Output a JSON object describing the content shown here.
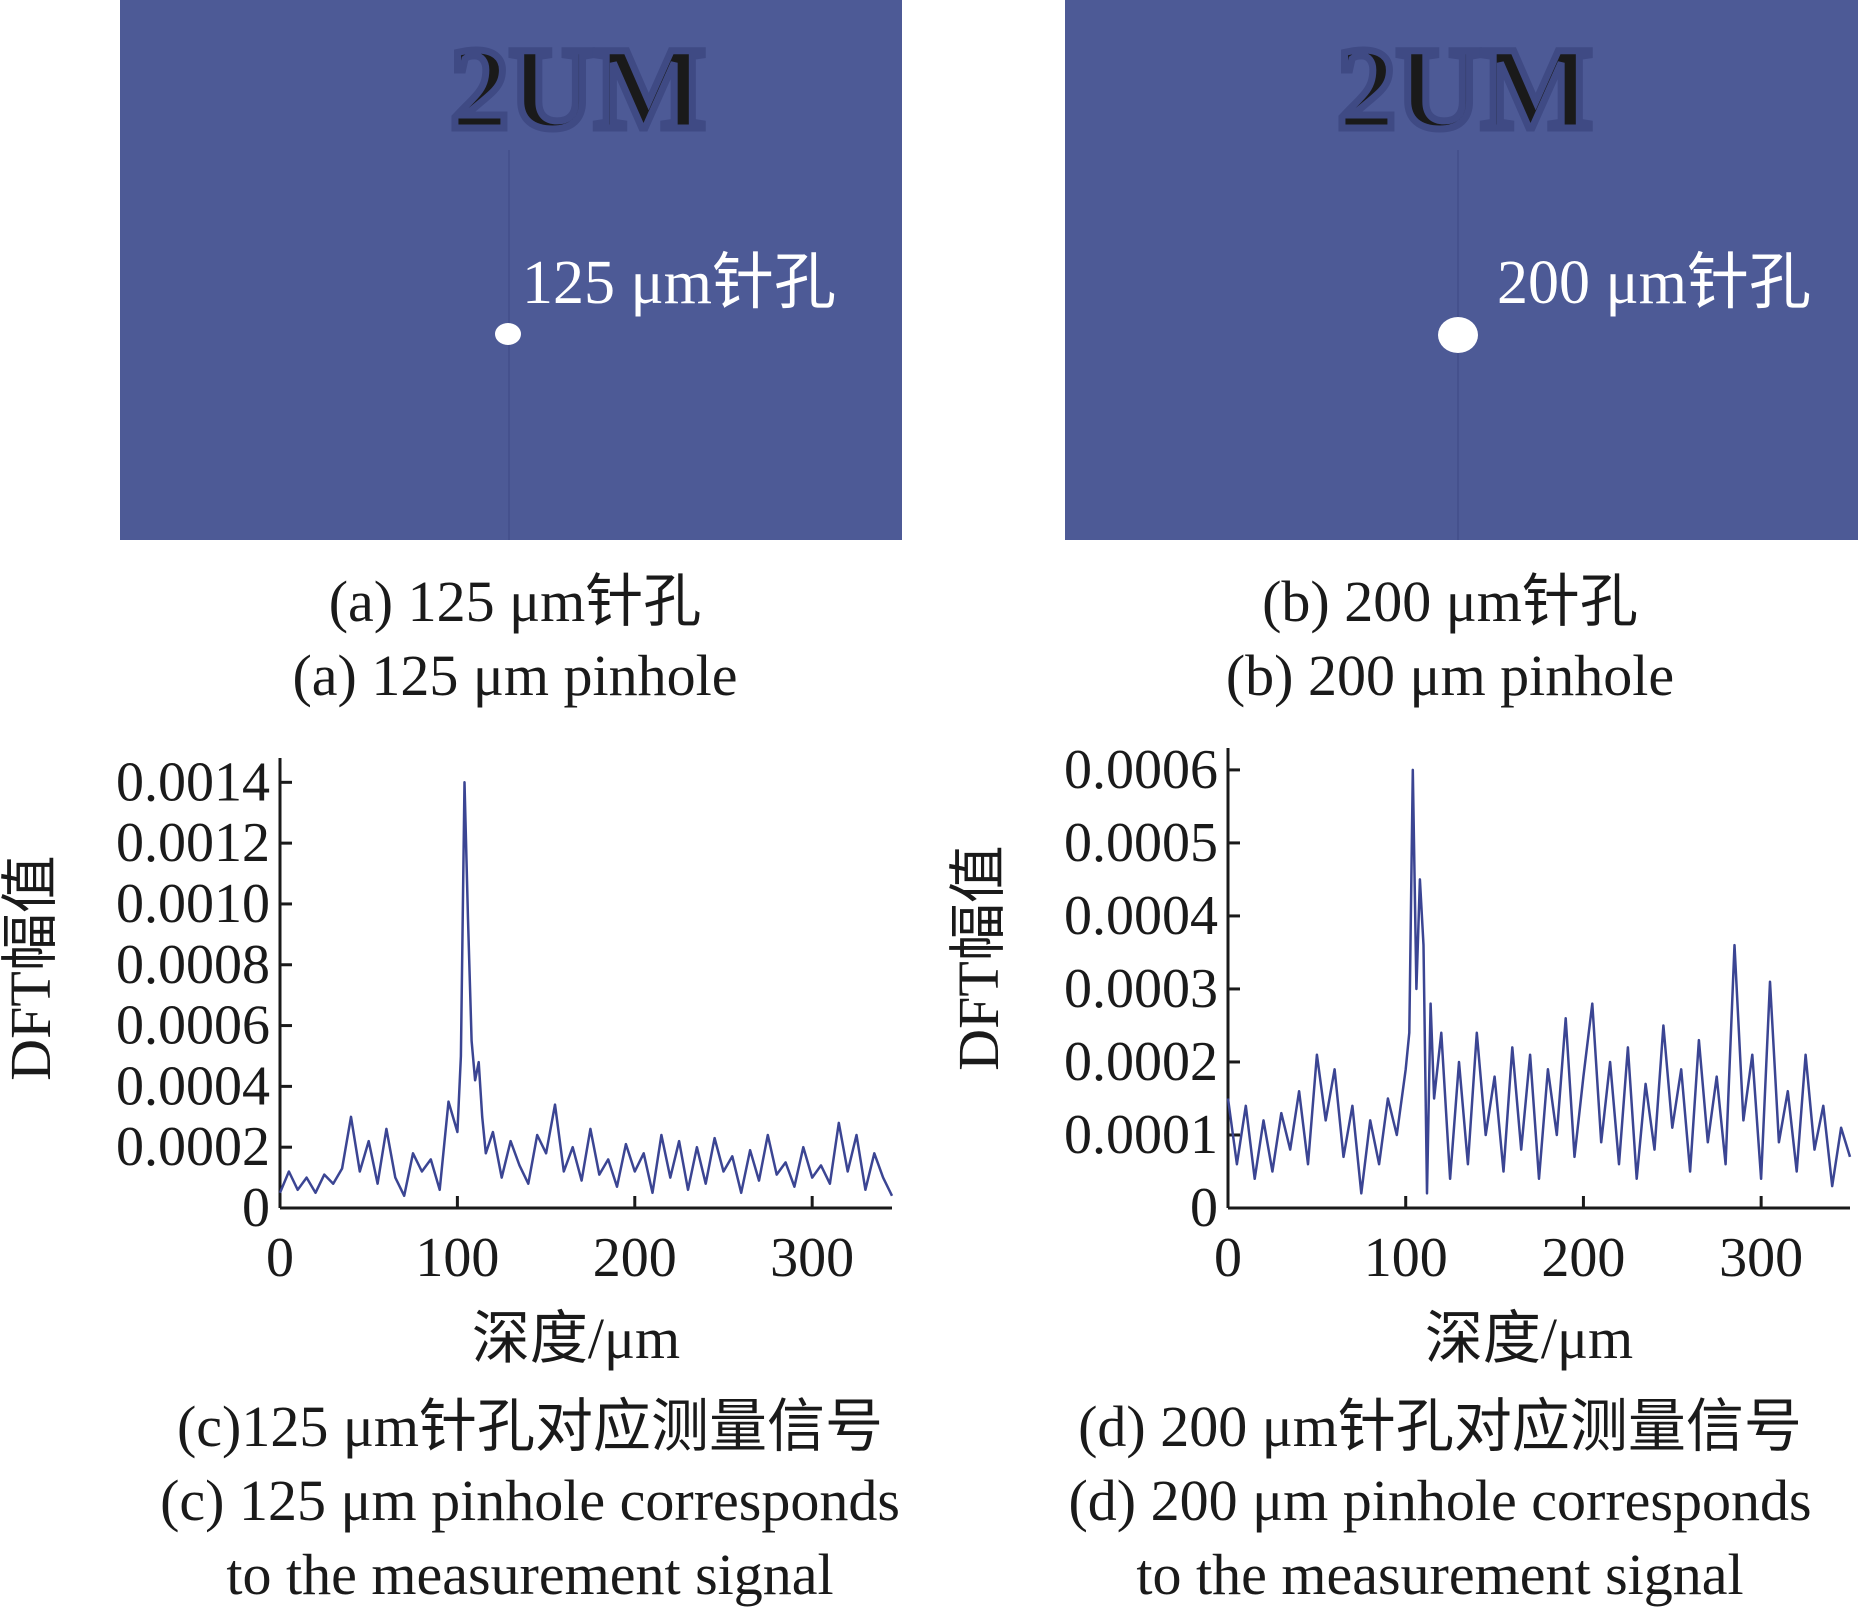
{
  "photos": {
    "a": {
      "logo_text": "2UM",
      "label": "125 μm针孔"
    },
    "b": {
      "logo_text": "2UM",
      "label": "200 μm针孔"
    }
  },
  "captions": {
    "a": {
      "zh": "(a) 125 μm针孔",
      "en": "(a) 125 μm pinhole"
    },
    "b": {
      "zh": "(b) 200 μm针孔",
      "en": "(b) 200 μm pinhole"
    },
    "c": {
      "zh": "(c)125 μm针孔对应测量信号",
      "en1": "(c) 125 μm pinhole corresponds",
      "en2": "to the measurement signal"
    },
    "d": {
      "zh": "(d) 200 μm针孔对应测量信号",
      "en1": "(d) 200 μm pinhole corresponds",
      "en2": "to the measurement signal"
    }
  },
  "colors": {
    "photo_bg": "#4d5a96",
    "line": "#3b4593",
    "text": "#1a1a1a"
  },
  "chart_data": [
    {
      "type": "line",
      "xlabel": "深度/μm",
      "ylabel": "DFT幅值",
      "xlim": [
        0,
        345
      ],
      "ylim": [
        0,
        0.00148
      ],
      "xticks": [
        0,
        100,
        200,
        300
      ],
      "yticks": [
        0,
        0.0002,
        0.0004,
        0.0006,
        0.0008,
        0.001,
        0.0012,
        0.0014
      ],
      "ytick_labels": [
        "0",
        "0.0002",
        "0.0004",
        "0.0006",
        "0.0008",
        "0.0010",
        "0.0012",
        "0.0014"
      ],
      "series": [
        {
          "x": [
            0,
            5,
            10,
            15,
            20,
            25,
            30,
            35,
            40,
            45,
            50,
            55,
            60,
            65,
            70,
            75,
            80,
            85,
            90,
            95,
            100,
            102,
            104,
            106,
            108,
            110,
            112,
            114,
            116,
            120,
            125,
            130,
            135,
            140,
            145,
            150,
            155,
            160,
            165,
            170,
            175,
            180,
            185,
            190,
            195,
            200,
            205,
            210,
            215,
            220,
            225,
            230,
            235,
            240,
            245,
            250,
            255,
            260,
            265,
            270,
            275,
            280,
            285,
            290,
            295,
            300,
            305,
            310,
            315,
            320,
            325,
            330,
            335,
            340,
            345
          ],
          "values": [
            5e-05,
            0.00012,
            6e-05,
            0.0001,
            5e-05,
            0.00011,
            8e-05,
            0.00013,
            0.0003,
            0.00012,
            0.00022,
            8e-05,
            0.00026,
            0.0001,
            4e-05,
            0.00018,
            0.00012,
            0.00016,
            6e-05,
            0.00035,
            0.00025,
            0.0005,
            0.0014,
            0.00095,
            0.00055,
            0.00042,
            0.00048,
            0.0003,
            0.00018,
            0.00025,
            0.0001,
            0.00022,
            0.00014,
            8e-05,
            0.00024,
            0.00018,
            0.00034,
            0.00012,
            0.0002,
            9e-05,
            0.00026,
            0.00011,
            0.00016,
            7e-05,
            0.00021,
            0.00012,
            0.00018,
            5e-05,
            0.00024,
            0.0001,
            0.00022,
            6e-05,
            0.0002,
            8e-05,
            0.00023,
            0.00012,
            0.00017,
            5e-05,
            0.00019,
            9e-05,
            0.00024,
            0.00011,
            0.00015,
            7e-05,
            0.0002,
            0.0001,
            0.00014,
            8e-05,
            0.00028,
            0.00012,
            0.00024,
            6e-05,
            0.00018,
            0.0001,
            4e-05
          ]
        }
      ]
    },
    {
      "type": "line",
      "xlabel": "深度/μm",
      "ylabel": "DFT幅值",
      "xlim": [
        0,
        350
      ],
      "ylim": [
        0,
        0.00063
      ],
      "xticks": [
        0,
        100,
        200,
        300
      ],
      "yticks": [
        0,
        0.0001,
        0.0002,
        0.0003,
        0.0004,
        0.0005,
        0.0006
      ],
      "ytick_labels": [
        "0",
        "0.0001",
        "0.0002",
        "0.0003",
        "0.0004",
        "0.0005",
        "0.0006"
      ],
      "series": [
        {
          "x": [
            0,
            5,
            10,
            15,
            20,
            25,
            30,
            35,
            40,
            45,
            50,
            55,
            60,
            65,
            70,
            75,
            80,
            85,
            90,
            95,
            100,
            102,
            104,
            106,
            108,
            110,
            112,
            114,
            116,
            120,
            125,
            130,
            135,
            140,
            145,
            150,
            155,
            160,
            165,
            170,
            175,
            180,
            185,
            190,
            195,
            200,
            205,
            210,
            215,
            220,
            225,
            230,
            235,
            240,
            245,
            250,
            255,
            260,
            265,
            270,
            275,
            280,
            285,
            290,
            295,
            300,
            305,
            310,
            315,
            320,
            325,
            330,
            335,
            340,
            345,
            350
          ],
          "values": [
            0.00015,
            6e-05,
            0.00014,
            4e-05,
            0.00012,
            5e-05,
            0.00013,
            8e-05,
            0.00016,
            6e-05,
            0.00021,
            0.00012,
            0.00019,
            7e-05,
            0.00014,
            2e-05,
            0.00012,
            6e-05,
            0.00015,
            0.0001,
            0.00019,
            0.00024,
            0.0006,
            0.0003,
            0.00045,
            0.00036,
            2e-05,
            0.00028,
            0.00015,
            0.00024,
            4e-05,
            0.0002,
            6e-05,
            0.00024,
            0.0001,
            0.00018,
            5e-05,
            0.00022,
            8e-05,
            0.00021,
            4e-05,
            0.00019,
            0.0001,
            0.00026,
            7e-05,
            0.00018,
            0.00028,
            9e-05,
            0.0002,
            6e-05,
            0.00022,
            4e-05,
            0.00017,
            8e-05,
            0.00025,
            0.00011,
            0.00019,
            5e-05,
            0.00023,
            9e-05,
            0.00018,
            6e-05,
            0.00036,
            0.00012,
            0.00021,
            4e-05,
            0.00031,
            9e-05,
            0.00016,
            5e-05,
            0.00021,
            8e-05,
            0.00014,
            3e-05,
            0.00011,
            7e-05
          ]
        }
      ]
    }
  ]
}
